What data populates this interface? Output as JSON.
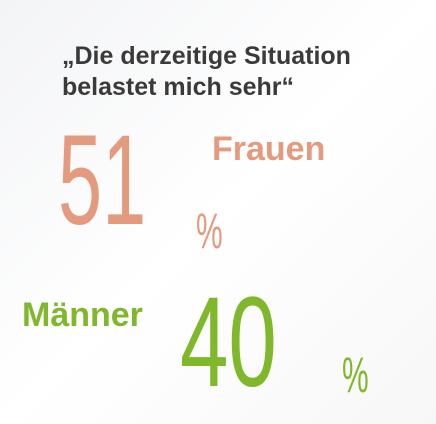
{
  "title": [
    "„Die derzeitige Situation",
    "belastet mich sehr“"
  ],
  "items": [
    {
      "label": "Frauen",
      "value": 51,
      "unit": "%"
    },
    {
      "label": "Männer",
      "value": 40,
      "unit": "%"
    }
  ]
}
